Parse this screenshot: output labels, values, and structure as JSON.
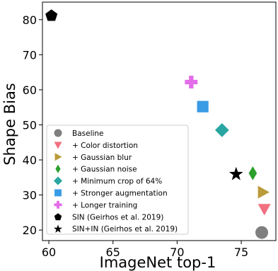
{
  "chart_data": {
    "type": "scatter",
    "xlabel": "ImageNet top-1",
    "ylabel": "Shape Bias",
    "xlim": [
      59.5,
      77.7
    ],
    "ylim": [
      17,
      85
    ],
    "xticks": [
      60,
      65,
      70,
      75
    ],
    "yticks": [
      20,
      30,
      40,
      50,
      60,
      70,
      80
    ],
    "grid": false,
    "legend_position": "bottom-left",
    "series": [
      {
        "name": "Baseline",
        "marker": "circle",
        "color": "#7f7f7f",
        "x": 76.6,
        "y": 19.3
      },
      {
        "name": "+ Color distortion",
        "marker": "triangle-down",
        "color": "#f0707f",
        "x": 76.8,
        "y": 26.0
      },
      {
        "name": "+ Gaussian blur",
        "marker": "triangle-right",
        "color": "#bb9a3a",
        "x": 76.7,
        "y": 30.8
      },
      {
        "name": "+ Gaussian noise",
        "marker": "diamond-thin",
        "color": "#2ca02c",
        "x": 75.9,
        "y": 36.2
      },
      {
        "name": "+ Minimum crop of 64%",
        "marker": "diamond",
        "color": "#2aa6a2",
        "x": 73.5,
        "y": 48.5
      },
      {
        "name": "+ Stronger augmentation",
        "marker": "square",
        "color": "#3a9be5",
        "x": 72.0,
        "y": 55.2
      },
      {
        "name": "+ Longer training",
        "marker": "plus",
        "color": "#e36ce9",
        "x": 71.1,
        "y": 62.2
      },
      {
        "name": "SIN (Geirhos et al. 2019)",
        "marker": "pentagon",
        "color": "#000000",
        "x": 60.2,
        "y": 81.3
      },
      {
        "name": "SIN+IN (Geirhos et al. 2019)",
        "marker": "star",
        "color": "#000000",
        "x": 74.6,
        "y": 36.1
      }
    ]
  }
}
